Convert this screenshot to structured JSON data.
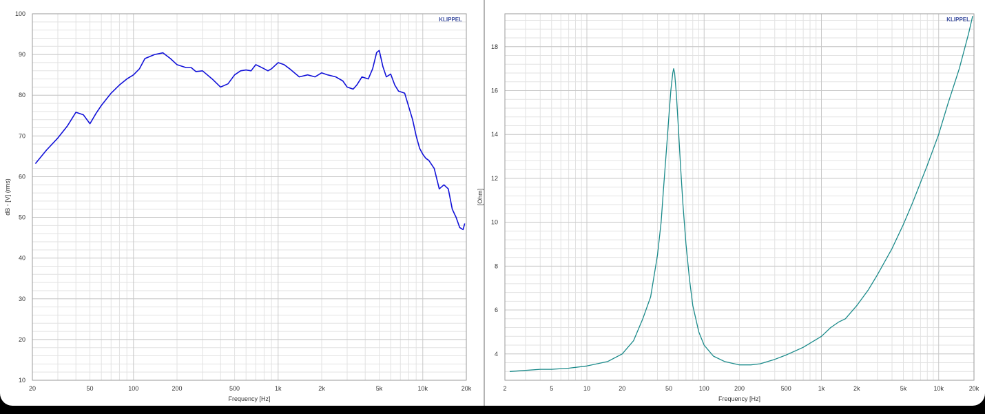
{
  "colors": {
    "background": "#ffffff",
    "grid_major": "#c8c8c8",
    "grid_minor": "#e2e2e2",
    "frequency_response_line": "#1010d8",
    "impedance_line": "#1a8a8a"
  },
  "chart_data": [
    {
      "type": "line",
      "title": "",
      "brand": "KLIPPEL",
      "xlabel": "Frequency [Hz]",
      "ylabel": "dB - [V] (rms)",
      "x_scale": "log",
      "xlim": [
        20,
        20000
      ],
      "ylim": [
        10,
        100
      ],
      "grid": true,
      "x_ticks": [
        20,
        50,
        100,
        200,
        500,
        1000,
        2000,
        5000,
        10000,
        20000
      ],
      "x_tick_labels": [
        "20",
        "50",
        "100",
        "200",
        "500",
        "1k",
        "2k",
        "5k",
        "10k",
        "20k"
      ],
      "y_ticks": [
        10,
        20,
        30,
        40,
        50,
        60,
        70,
        80,
        90,
        100
      ],
      "y_tick_labels": [
        "10",
        "20",
        "30",
        "40",
        "50",
        "60",
        "70",
        "80",
        "90",
        "100"
      ],
      "series": [
        {
          "x": [
            21,
            25,
            30,
            35,
            40,
            45,
            50,
            55,
            60,
            70,
            80,
            90,
            100,
            110,
            120,
            140,
            160,
            180,
            200,
            230,
            250,
            270,
            300,
            350,
            400,
            450,
            500,
            550,
            600,
            650,
            700,
            750,
            800,
            850,
            900,
            1000,
            1100,
            1200,
            1400,
            1600,
            1800,
            2000,
            2200,
            2500,
            2800,
            3000,
            3300,
            3500,
            3800,
            4200,
            4500,
            4800,
            5000,
            5300,
            5600,
            6000,
            6400,
            6800,
            7500,
            8500,
            9000,
            9500,
            10000,
            10500,
            11000,
            12000,
            13000,
            14000,
            15000,
            16000,
            17000,
            18000,
            19000,
            19500
          ],
          "y": [
            63.2,
            66.5,
            69.5,
            72.5,
            75.8,
            75.2,
            73.0,
            75.5,
            77.5,
            80.5,
            82.5,
            84.0,
            85.0,
            86.5,
            89.0,
            90.0,
            90.4,
            89.0,
            87.5,
            86.8,
            86.8,
            85.8,
            86.0,
            84.0,
            82.0,
            82.8,
            85.0,
            86.0,
            86.2,
            86.0,
            87.5,
            87.0,
            86.5,
            86.0,
            86.5,
            88.0,
            87.5,
            86.5,
            84.5,
            85.0,
            84.5,
            85.5,
            85.0,
            84.5,
            83.5,
            82.0,
            81.5,
            82.5,
            84.5,
            84.0,
            86.5,
            90.5,
            91.0,
            87.0,
            84.5,
            85.2,
            82.5,
            81.0,
            80.5,
            74.0,
            70.0,
            67.0,
            65.5,
            64.5,
            64.0,
            62.0,
            57.0,
            58.0,
            57.0,
            52.0,
            50.0,
            47.5,
            47.0,
            48.5
          ]
        }
      ]
    },
    {
      "type": "line",
      "title": "",
      "brand": "KLIPPEL",
      "xlabel": "Frequency [Hz]",
      "ylabel": "[Ohm]",
      "x_scale": "log",
      "xlim": [
        2,
        20000
      ],
      "ylim": [
        2.8,
        19.5
      ],
      "grid": true,
      "x_ticks": [
        2,
        5,
        10,
        20,
        50,
        100,
        200,
        500,
        1000,
        2000,
        5000,
        10000,
        20000
      ],
      "x_tick_labels": [
        "2",
        "5",
        "10",
        "20",
        "50",
        "100",
        "200",
        "500",
        "1k",
        "2k",
        "5k",
        "10k",
        "20k"
      ],
      "y_ticks": [
        4,
        6,
        8,
        10,
        12,
        14,
        16,
        18
      ],
      "y_tick_labels": [
        "4",
        "6",
        "8",
        "10",
        "12",
        "14",
        "16",
        "18"
      ],
      "series": [
        {
          "x": [
            2.2,
            3,
            4,
            5,
            7,
            10,
            15,
            20,
            25,
            30,
            35,
            40,
            43,
            45,
            48,
            50,
            52,
            54,
            55,
            56,
            58,
            60,
            63,
            66,
            70,
            75,
            80,
            90,
            100,
            120,
            150,
            200,
            250,
            300,
            400,
            500,
            700,
            1000,
            1200,
            1400,
            1600,
            2000,
            2500,
            3000,
            4000,
            5000,
            6000,
            8000,
            10000,
            12000,
            15000,
            18000,
            19500
          ],
          "y": [
            3.2,
            3.25,
            3.3,
            3.3,
            3.35,
            3.45,
            3.65,
            4.0,
            4.6,
            5.6,
            6.6,
            8.5,
            10.0,
            11.5,
            13.5,
            14.8,
            16.0,
            16.8,
            17.0,
            16.8,
            15.8,
            14.5,
            12.5,
            10.8,
            9.0,
            7.4,
            6.2,
            5.0,
            4.4,
            3.9,
            3.65,
            3.5,
            3.5,
            3.55,
            3.75,
            3.95,
            4.3,
            4.8,
            5.2,
            5.45,
            5.6,
            6.2,
            6.9,
            7.6,
            8.8,
            9.9,
            10.9,
            12.6,
            14.0,
            15.4,
            17.0,
            18.6,
            19.4
          ]
        }
      ]
    }
  ]
}
